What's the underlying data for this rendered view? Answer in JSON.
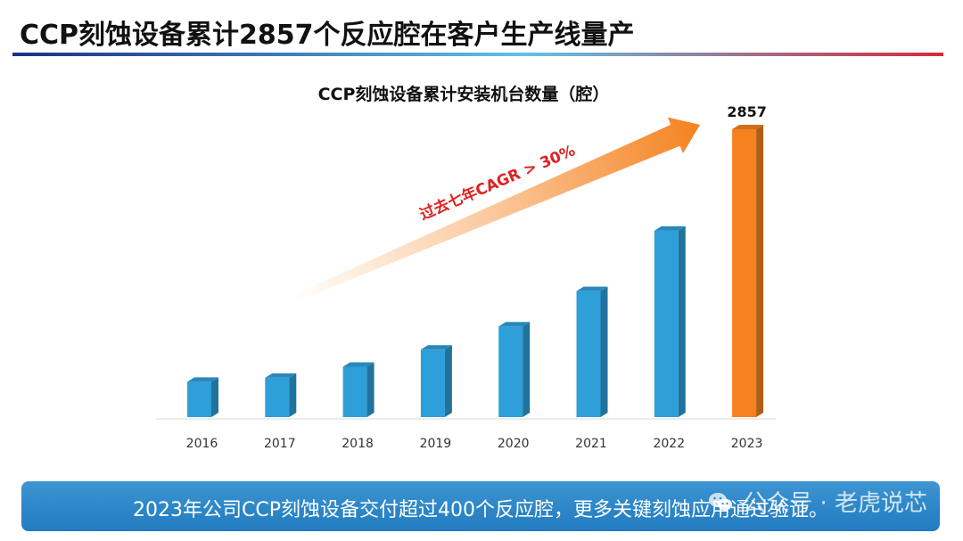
{
  "page": {
    "title": "CCP刻蚀设备累计2857个反应腔在客户生产线量产"
  },
  "chart_data": {
    "type": "bar",
    "title": "CCP刻蚀设备累计安装机台数量（腔）",
    "categories": [
      "2016",
      "2017",
      "2018",
      "2019",
      "2020",
      "2021",
      "2022",
      "2023"
    ],
    "values": [
      350,
      390,
      500,
      670,
      900,
      1250,
      1850,
      2857
    ],
    "data_labels": [
      "",
      "",
      "",
      "",
      "",
      "",
      "",
      "2857"
    ],
    "ylim": [
      0,
      2900
    ],
    "grid": false,
    "xlabel": "",
    "ylabel": "",
    "annotation": "过去七年CAGR > 30%",
    "colors": {
      "bar": "#2e9fd8",
      "highlight": "#f5821f",
      "annotation": "#e02020"
    }
  },
  "banner": {
    "text": "2023年公司CCP刻蚀设备交付超过400个反应腔，更多关键刻蚀应用通过验证。"
  },
  "watermark": {
    "text": "公众号 · 老虎说芯",
    "icon": "wechat-icon"
  },
  "colors": {
    "rule_start": "#1a2f8a",
    "rule_mid": "#5fc2e8",
    "rule_end": "#d8283a",
    "banner": "#2d88c9"
  }
}
